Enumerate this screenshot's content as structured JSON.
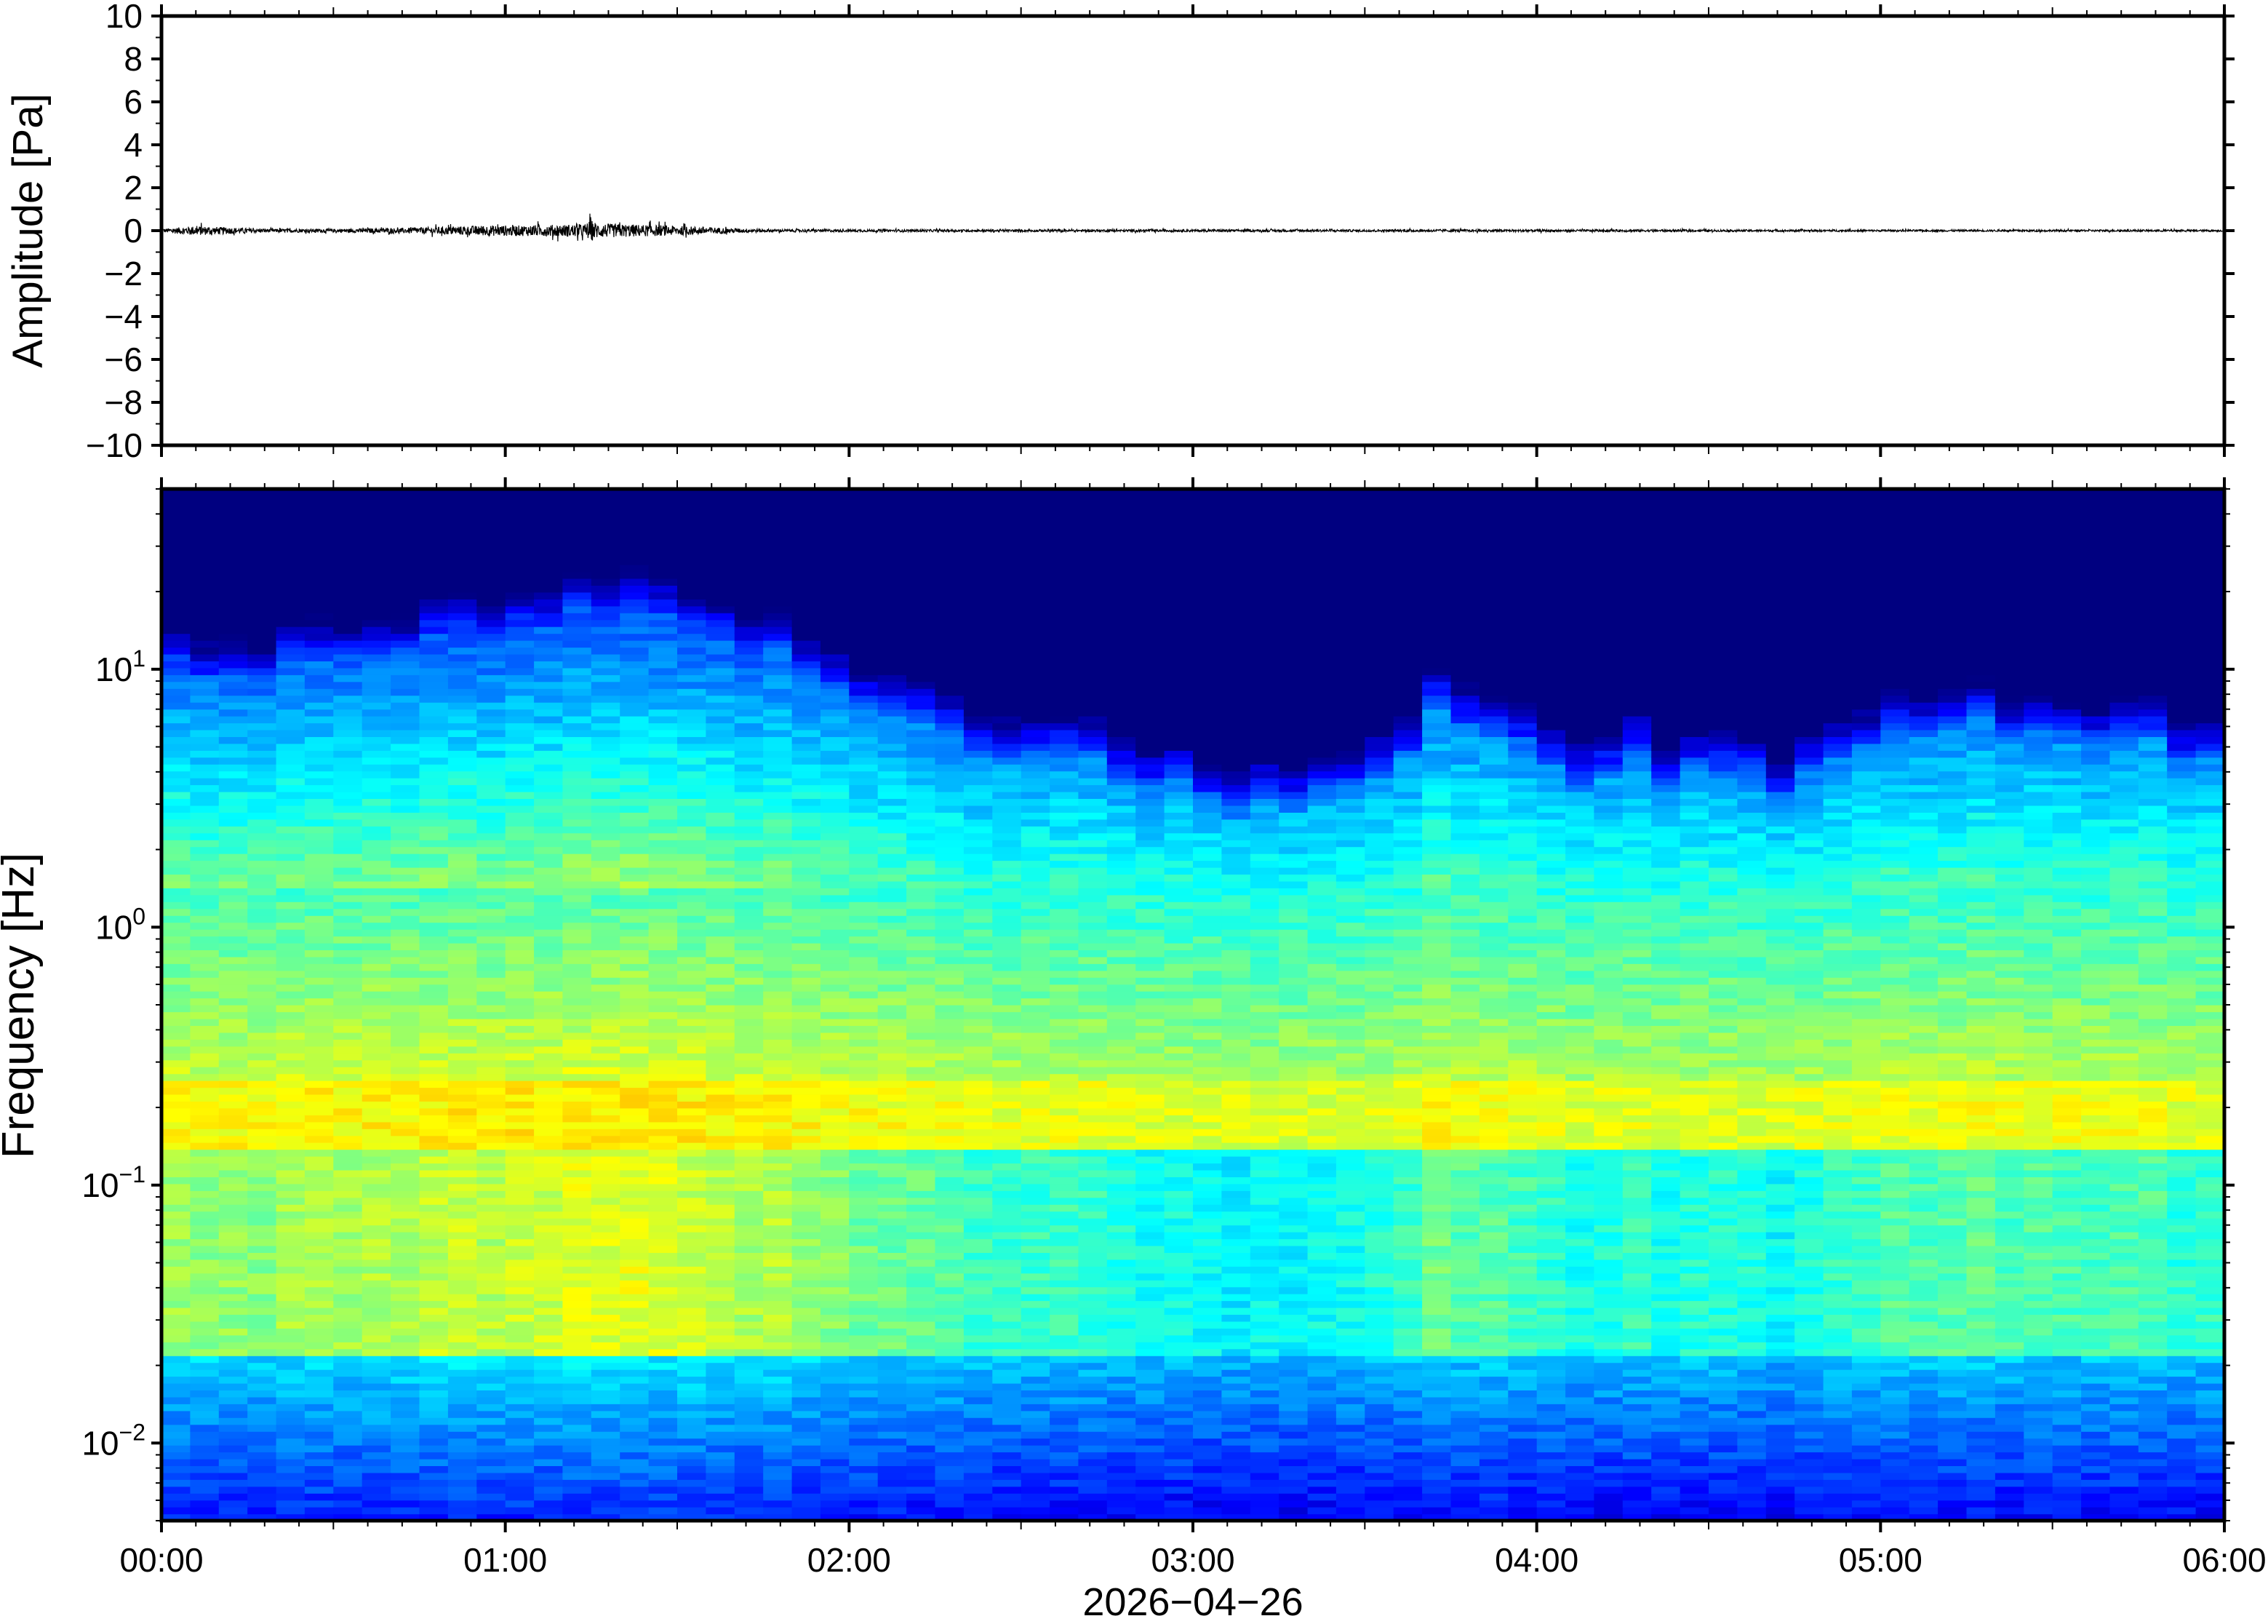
{
  "chart_data": [
    {
      "type": "line",
      "ylabel": "Amplitude [Pa]",
      "ylim": [
        -10,
        10
      ],
      "y_ticks": [
        "10",
        "8",
        "6",
        "4",
        "2",
        "0",
        "−2",
        "−4",
        "−6",
        "−8",
        "−10"
      ],
      "y_tick_values": [
        10,
        8,
        6,
        4,
        2,
        0,
        -2,
        -4,
        -6,
        -8,
        -10
      ],
      "x_range_hours": [
        0,
        6
      ],
      "series": [
        {
          "color": "#000000",
          "envelope_x_hours": [
            0.0,
            0.1,
            0.3,
            0.5,
            0.7,
            0.85,
            0.95,
            1.05,
            1.15,
            1.23,
            1.25,
            1.27,
            1.35,
            1.45,
            1.55,
            1.6,
            1.65,
            1.8,
            2.2,
            3.0,
            4.0,
            5.0,
            6.0
          ],
          "envelope_pa": [
            0.15,
            0.4,
            0.15,
            0.15,
            0.22,
            0.35,
            0.45,
            0.45,
            0.5,
            0.55,
            0.9,
            0.6,
            0.55,
            0.45,
            0.35,
            0.3,
            0.2,
            0.12,
            0.1,
            0.1,
            0.1,
            0.08,
            0.08
          ]
        }
      ]
    },
    {
      "type": "heatmap",
      "ylabel": "Frequency [Hz]",
      "yscale": "log",
      "ylim": [
        0.005,
        50
      ],
      "y_ticks": [
        {
          "base": "10",
          "exp": "1",
          "value": 10
        },
        {
          "base": "10",
          "exp": "0",
          "value": 1
        },
        {
          "base": "10",
          "exp": "−1",
          "value": 0.1
        },
        {
          "base": "10",
          "exp": "−2",
          "value": 0.01
        }
      ],
      "x_range_hours": [
        0,
        6
      ],
      "colormap": "jet",
      "colormap_colors": [
        "#000080",
        "#0000ff",
        "#0080ff",
        "#00ffff",
        "#80ff80",
        "#ffff00",
        "#ff8000",
        "#ff0000"
      ],
      "activity_profile_hours": [
        0.0,
        0.5,
        1.0,
        1.3,
        1.6,
        2.0,
        2.2,
        2.4,
        2.7,
        3.0,
        3.2,
        3.4,
        3.6,
        3.7,
        3.9,
        4.1,
        4.3,
        4.5,
        4.7,
        4.9,
        5.2,
        5.6,
        6.0
      ],
      "activity_profile_level": [
        0.65,
        0.7,
        0.85,
        0.95,
        0.85,
        0.6,
        0.5,
        0.35,
        0.3,
        0.15,
        0.12,
        0.2,
        0.25,
        0.55,
        0.45,
        0.25,
        0.3,
        0.22,
        0.2,
        0.35,
        0.45,
        0.4,
        0.35
      ]
    }
  ],
  "x_axis": {
    "ticks": [
      "00:00",
      "01:00",
      "02:00",
      "03:00",
      "04:00",
      "05:00",
      "06:00"
    ],
    "tick_hours": [
      0,
      1,
      2,
      3,
      4,
      5,
      6
    ],
    "date_label": "2026−04−26"
  }
}
